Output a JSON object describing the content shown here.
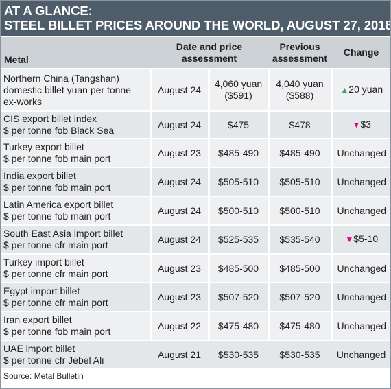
{
  "title": {
    "line1": "AT A GLANCE:",
    "line2": "STEEL BILLET PRICES AROUND THE WORLD, AUGUST 27, 2018"
  },
  "table": {
    "headers": {
      "metal": "Metal",
      "date_line1": "Date and price",
      "date_line2": "assessment",
      "prev_line1": "Previous",
      "prev_line2": "assessment",
      "change": "Change"
    },
    "rows": [
      {
        "metal_lines": [
          "Northern China (Tangshan)",
          "domestic billet yuan per tonne",
          "ex-works"
        ],
        "date": "August 24",
        "price_lines": [
          "4,060 yuan",
          "($591)"
        ],
        "prev_lines": [
          "4,040 yuan",
          "($588)"
        ],
        "change": "20 yuan",
        "change_dir": "up",
        "change_icon": "triangle-up-icon"
      },
      {
        "metal_lines": [
          "CIS export billet index",
          "$ per tonne fob Black Sea"
        ],
        "date": "August 24",
        "price_lines": [
          "$475"
        ],
        "prev_lines": [
          "$478"
        ],
        "change": "$3",
        "change_dir": "down",
        "change_icon": "triangle-down-icon"
      },
      {
        "metal_lines": [
          "Turkey export billet",
          "$ per tonne fob main port"
        ],
        "date": "August 23",
        "price_lines": [
          "$485-490"
        ],
        "prev_lines": [
          "$485-490"
        ],
        "change": "Unchanged",
        "change_dir": "none"
      },
      {
        "metal_lines": [
          "India export billet",
          "$ per tonne fob main port"
        ],
        "date": "August 24",
        "price_lines": [
          "$505-510"
        ],
        "prev_lines": [
          "$505-510"
        ],
        "change": "Unchanged",
        "change_dir": "none"
      },
      {
        "metal_lines": [
          "Latin America export billet",
          "$ per tonne fob main port"
        ],
        "date": "August 24",
        "price_lines": [
          "$500-510"
        ],
        "prev_lines": [
          "$500-510"
        ],
        "change": "Unchanged",
        "change_dir": "none"
      },
      {
        "metal_lines": [
          "South East Asia import billet",
          "$ per tonne cfr main port"
        ],
        "date": "August 24",
        "price_lines": [
          "$525-535"
        ],
        "prev_lines": [
          "$535-540"
        ],
        "change": "$5-10",
        "change_dir": "down",
        "change_icon": "triangle-down-icon"
      },
      {
        "metal_lines": [
          "Turkey import billet",
          "$ per tonne cfr main port"
        ],
        "date": "August 23",
        "price_lines": [
          "$485-500"
        ],
        "prev_lines": [
          "$485-500"
        ],
        "change": "Unchanged",
        "change_dir": "none"
      },
      {
        "metal_lines": [
          "Egypt import billet",
          "$ per tonne cfr main port"
        ],
        "date": "August 23",
        "price_lines": [
          "$507-520"
        ],
        "prev_lines": [
          "$507-520"
        ],
        "change": "Unchanged",
        "change_dir": "none"
      },
      {
        "metal_lines": [
          "Iran export billet",
          "$ per tonne fob main port"
        ],
        "date": "August 22",
        "price_lines": [
          "$475-480"
        ],
        "prev_lines": [
          "$475-480"
        ],
        "change": "Unchanged",
        "change_dir": "none"
      },
      {
        "metal_lines": [
          "UAE import billet",
          "$ per tonne cfr Jebel Ali"
        ],
        "date": "August 21",
        "price_lines": [
          "$530-535"
        ],
        "prev_lines": [
          "$530-535"
        ],
        "change": "Unchanged",
        "change_dir": "none"
      }
    ]
  },
  "source": "Source: Metal Bulletin",
  "colors": {
    "banner": "#4f5d6b",
    "header_bg": "#cdd2d6",
    "up": "#3aa35b",
    "down": "#e0077d"
  }
}
